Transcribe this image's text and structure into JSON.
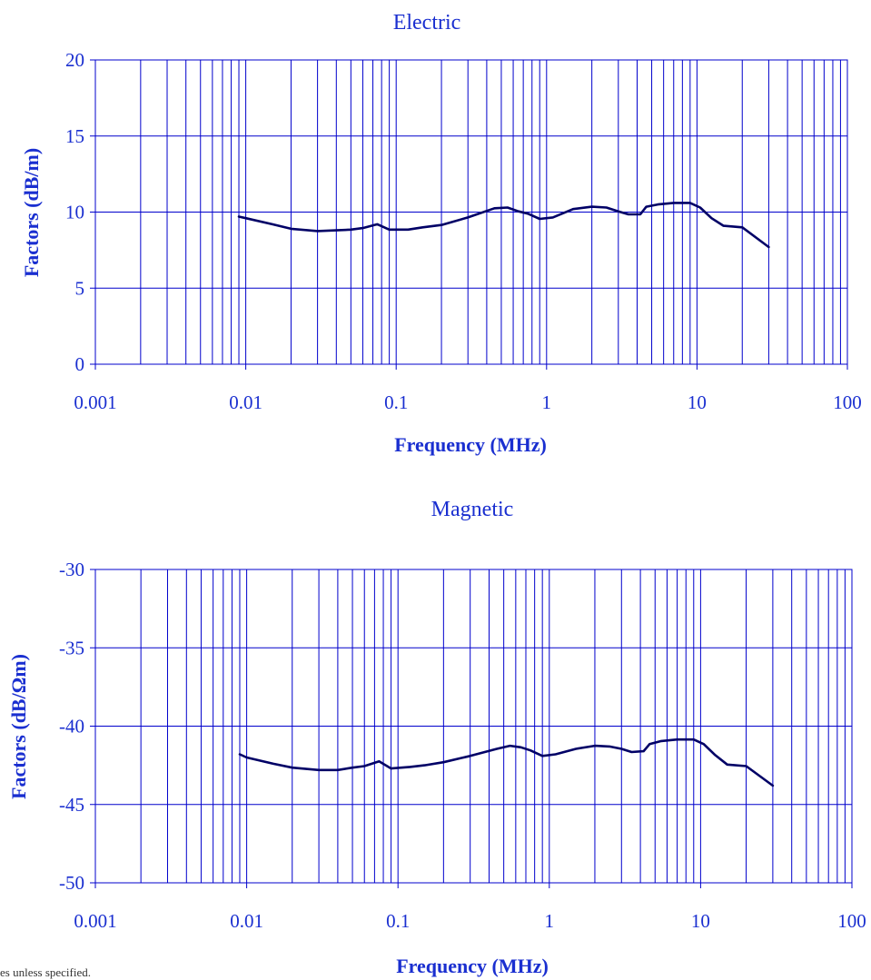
{
  "footnote": "es unless specified.",
  "colors": {
    "grid": "#0000cc",
    "line": "#000066",
    "text": "#1a2fd0"
  },
  "chart_data": [
    {
      "type": "line",
      "title": "Electric",
      "xlabel": "Frequency (MHz)",
      "ylabel": "Factors (dB/m)",
      "xscale": "log",
      "xlim": [
        0.001,
        100
      ],
      "ylim": [
        0,
        20
      ],
      "xticks": [
        "0.001",
        "0.01",
        "0.1",
        "1",
        "10",
        "100"
      ],
      "yticks": [
        "20",
        "15",
        "10",
        "5",
        "0"
      ],
      "grid": true,
      "x": [
        0.009,
        0.01,
        0.015,
        0.02,
        0.03,
        0.04,
        0.05,
        0.06,
        0.075,
        0.09,
        0.12,
        0.15,
        0.2,
        0.3,
        0.45,
        0.55,
        0.65,
        0.75,
        0.9,
        1.1,
        1.5,
        2.0,
        2.5,
        3.0,
        3.5,
        4.2,
        4.6,
        5.5,
        7.0,
        9.0,
        10.5,
        12.5,
        15,
        20,
        30
      ],
      "series": [
        {
          "values": [
            9.7,
            9.6,
            9.2,
            8.9,
            8.75,
            8.8,
            8.85,
            8.95,
            9.2,
            8.85,
            8.85,
            9.0,
            9.15,
            9.65,
            10.25,
            10.3,
            10.05,
            9.9,
            9.55,
            9.65,
            10.2,
            10.35,
            10.3,
            10.05,
            9.85,
            9.85,
            10.35,
            10.5,
            10.6,
            10.6,
            10.3,
            9.6,
            9.1,
            9.0,
            7.7
          ]
        }
      ]
    },
    {
      "type": "line",
      "title": "Magnetic",
      "xlabel": "Frequency (MHz)",
      "ylabel": "Factors (dB/Ωm)",
      "xscale": "log",
      "xlim": [
        0.001,
        100
      ],
      "ylim": [
        -50,
        -30
      ],
      "xticks": [
        "0.001",
        "0.01",
        "0.1",
        "1",
        "10",
        "100"
      ],
      "yticks": [
        "-30",
        "-35",
        "-40",
        "-45",
        "-50"
      ],
      "grid": true,
      "x": [
        0.009,
        0.01,
        0.015,
        0.02,
        0.03,
        0.04,
        0.05,
        0.06,
        0.075,
        0.09,
        0.12,
        0.15,
        0.2,
        0.3,
        0.45,
        0.55,
        0.65,
        0.75,
        0.9,
        1.1,
        1.5,
        2.0,
        2.5,
        3.0,
        3.5,
        4.2,
        4.6,
        5.5,
        7.0,
        9.0,
        10.5,
        12.5,
        15,
        20,
        30
      ],
      "series": [
        {
          "values": [
            -41.8,
            -42.0,
            -42.4,
            -42.65,
            -42.8,
            -42.8,
            -42.65,
            -42.55,
            -42.25,
            -42.7,
            -42.6,
            -42.5,
            -42.3,
            -41.9,
            -41.45,
            -41.25,
            -41.35,
            -41.55,
            -41.9,
            -41.8,
            -41.45,
            -41.25,
            -41.3,
            -41.45,
            -41.65,
            -41.6,
            -41.15,
            -40.95,
            -40.85,
            -40.85,
            -41.15,
            -41.85,
            -42.45,
            -42.55,
            -43.8
          ]
        }
      ]
    }
  ]
}
